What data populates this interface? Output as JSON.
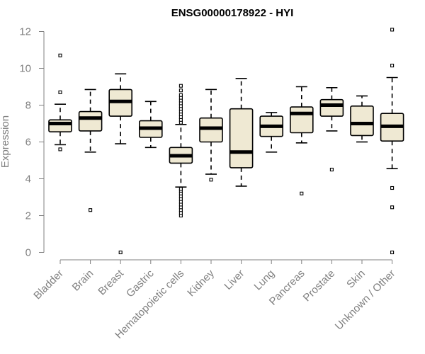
{
  "chart_data": {
    "type": "boxplot",
    "title": "ENSG00000178922 - HYI",
    "xlabel": "",
    "ylabel": "Expression",
    "ylim": [
      0,
      12
    ],
    "yticks": [
      0,
      2,
      4,
      6,
      8,
      10,
      12
    ],
    "box_color": "#efe9d3",
    "categories": [
      "Bladder",
      "Brain",
      "Breast",
      "Gastric",
      "Hematopoietic cells",
      "Kidney",
      "Liver",
      "Lung",
      "Pancreas",
      "Prostate",
      "Skin",
      "Unknown / Other"
    ],
    "boxes": [
      {
        "q1": 6.55,
        "median": 7.0,
        "q3": 7.2,
        "whisker_low": 5.85,
        "whisker_high": 8.05,
        "outliers": [
          5.6,
          8.7,
          10.7
        ]
      },
      {
        "q1": 6.6,
        "median": 7.3,
        "q3": 7.65,
        "whisker_low": 5.45,
        "whisker_high": 8.85,
        "outliers": [
          2.3
        ]
      },
      {
        "q1": 7.4,
        "median": 8.2,
        "q3": 8.85,
        "whisker_low": 5.9,
        "whisker_high": 9.7,
        "outliers": [
          0.0
        ]
      },
      {
        "q1": 6.25,
        "median": 6.75,
        "q3": 7.15,
        "whisker_low": 5.7,
        "whisker_high": 8.2,
        "outliers": []
      },
      {
        "q1": 4.85,
        "median": 5.25,
        "q3": 5.7,
        "whisker_low": 3.55,
        "whisker_high": 6.95,
        "outliers": [
          2.0,
          2.15,
          2.3,
          2.45,
          2.6,
          2.75,
          2.9,
          3.05,
          3.2,
          3.35,
          3.45,
          7.05,
          7.2,
          7.35,
          7.5,
          7.65,
          7.8,
          7.95,
          8.1,
          8.25,
          8.4,
          8.55,
          8.8,
          9.05
        ]
      },
      {
        "q1": 6.0,
        "median": 6.75,
        "q3": 7.3,
        "whisker_low": 4.25,
        "whisker_high": 8.85,
        "outliers": [
          3.95
        ]
      },
      {
        "q1": 4.6,
        "median": 5.45,
        "q3": 7.8,
        "whisker_low": 3.6,
        "whisker_high": 9.45,
        "outliers": []
      },
      {
        "q1": 6.3,
        "median": 6.85,
        "q3": 7.4,
        "whisker_low": 5.45,
        "whisker_high": 7.6,
        "outliers": []
      },
      {
        "q1": 6.5,
        "median": 7.55,
        "q3": 7.9,
        "whisker_low": 5.95,
        "whisker_high": 9.0,
        "outliers": [
          3.2
        ]
      },
      {
        "q1": 7.4,
        "median": 8.0,
        "q3": 8.3,
        "whisker_low": 6.6,
        "whisker_high": 8.95,
        "outliers": [
          4.5
        ]
      },
      {
        "q1": 6.35,
        "median": 7.0,
        "q3": 7.95,
        "whisker_low": 6.0,
        "whisker_high": 8.5,
        "outliers": []
      },
      {
        "q1": 6.05,
        "median": 6.85,
        "q3": 7.55,
        "whisker_low": 4.55,
        "whisker_high": 9.5,
        "outliers": [
          0.0,
          2.45,
          3.5,
          10.15,
          12.1
        ]
      }
    ]
  }
}
